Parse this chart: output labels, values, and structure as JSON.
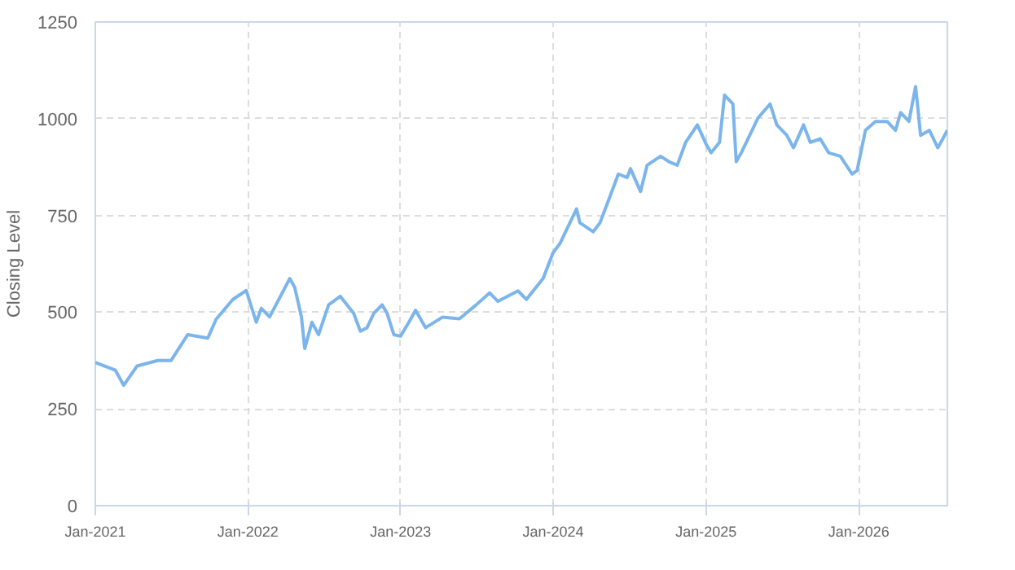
{
  "chart_data": {
    "type": "line",
    "ylabel": "Closing Level",
    "x": [
      "2021-01-01",
      "2021-02-18",
      "2021-03-10",
      "2021-04-11",
      "2021-05-30",
      "2021-07-01",
      "2021-08-10",
      "2021-09-27",
      "2021-10-17",
      "2021-11-26",
      "2021-12-28",
      "2022-01-21",
      "2022-02-02",
      "2022-02-22",
      "2022-04-11",
      "2022-04-23",
      "2022-05-09",
      "2022-05-17",
      "2022-06-03",
      "2022-06-19",
      "2022-07-13",
      "2022-08-10",
      "2022-09-11",
      "2022-09-27",
      "2022-10-13",
      "2022-10-29",
      "2022-11-18",
      "2022-11-30",
      "2022-12-16",
      "2023-01-01",
      "2023-01-21",
      "2023-02-06",
      "2023-03-02",
      "2023-04-11",
      "2023-05-22",
      "2023-07-01",
      "2023-08-02",
      "2023-08-22",
      "2023-10-09",
      "2023-10-29",
      "2023-12-08",
      "2024-01-01",
      "2024-01-17",
      "2024-02-26",
      "2024-03-05",
      "2024-04-06",
      "2024-04-22",
      "2024-05-16",
      "2024-06-05",
      "2024-06-26",
      "2024-07-04",
      "2024-07-28",
      "2024-08-13",
      "2024-09-14",
      "2024-10-04",
      "2024-10-24",
      "2024-11-13",
      "2024-12-11",
      "2025-01-01",
      "2025-01-13",
      "2025-02-02",
      "2025-02-14",
      "2025-03-06",
      "2025-03-14",
      "2025-03-26",
      "2025-04-11",
      "2025-05-05",
      "2025-06-03",
      "2025-06-19",
      "2025-07-13",
      "2025-07-29",
      "2025-08-22",
      "2025-09-07",
      "2025-10-01",
      "2025-10-21",
      "2025-11-18",
      "2025-12-16",
      "2025-12-28",
      "2026-01-17",
      "2026-02-10",
      "2026-03-10",
      "2026-03-30",
      "2026-04-11",
      "2026-05-01",
      "2026-05-17",
      "2026-05-29",
      "2026-06-19",
      "2026-07-09",
      "2026-07-21",
      "2026-08-01"
    ],
    "series": [
      {
        "color": "#7cb5ec",
        "values": [
          370,
          350,
          311,
          361,
          375,
          375,
          442,
          433,
          482,
          533,
          556,
          474,
          510,
          488,
          587,
          564,
          488,
          406,
          474,
          442,
          519,
          541,
          497,
          451,
          460,
          497,
          519,
          497,
          442,
          438,
          474,
          505,
          460,
          487,
          483,
          519,
          550,
          528,
          555,
          533,
          587,
          654,
          677,
          767,
          731,
          708,
          731,
          799,
          857,
          848,
          871,
          812,
          880,
          903,
          889,
          880,
          939,
          984,
          934,
          912,
          939,
          1061,
          1038,
          889,
          912,
          948,
          1002,
          1038,
          984,
          957,
          925,
          984,
          939,
          948,
          912,
          903,
          857,
          866,
          970,
          993,
          993,
          970,
          1016,
          993,
          1083,
          957,
          970,
          925,
          948,
          970
        ]
      }
    ],
    "xlim": [
      "2021-01-01",
      "2026-08-01"
    ],
    "xticks": [
      {
        "value": "2021-01-01",
        "label": "Jan-2021"
      },
      {
        "value": "2022-01-01",
        "label": "Jan-2022"
      },
      {
        "value": "2023-01-01",
        "label": "Jan-2023"
      },
      {
        "value": "2024-01-01",
        "label": "Jan-2024"
      },
      {
        "value": "2025-01-01",
        "label": "Jan-2025"
      },
      {
        "value": "2026-01-01",
        "label": "Jan-2026"
      }
    ],
    "ylim": [
      0,
      1250
    ],
    "yticks": [
      0,
      250,
      500,
      750,
      1000,
      1250
    ],
    "grid": true,
    "line_style": "solid",
    "marker": "none"
  }
}
